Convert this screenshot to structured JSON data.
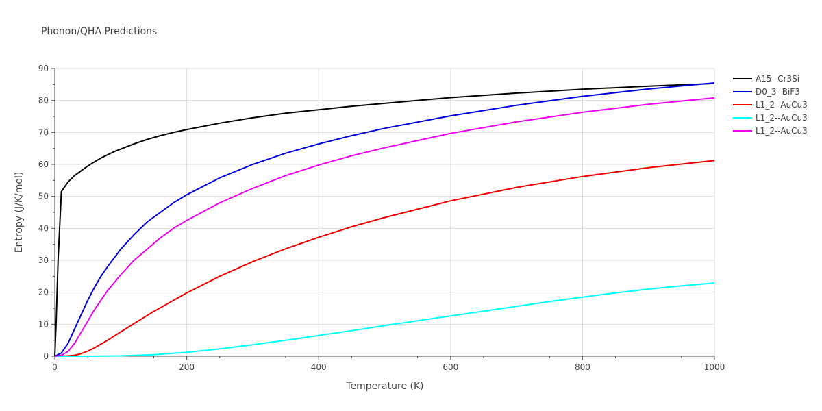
{
  "chart_data": {
    "type": "line",
    "title": "Phonon/QHA Predictions",
    "xlabel": "Temperature (K)",
    "ylabel": "Entropy (J/K/mol)",
    "xlim": [
      0,
      1000
    ],
    "ylim": [
      0,
      90
    ],
    "x_ticks": [
      0,
      200,
      400,
      600,
      800,
      1000
    ],
    "y_ticks": [
      0,
      10,
      20,
      30,
      40,
      50,
      60,
      70,
      80,
      90
    ],
    "grid": true,
    "legend_position": "top-right",
    "series": [
      {
        "name": "A15--Cr3Si",
        "color": "#000000",
        "x": [
          0,
          2,
          5,
          10,
          20,
          30,
          40,
          50,
          60,
          70,
          80,
          90,
          100,
          120,
          140,
          160,
          180,
          200,
          250,
          300,
          350,
          400,
          450,
          500,
          600,
          700,
          800,
          900,
          1000
        ],
        "y": [
          0,
          10,
          30,
          51.5,
          54.5,
          56.5,
          58,
          59.5,
          60.8,
          62,
          63,
          64,
          64.8,
          66.4,
          67.8,
          69,
          70,
          70.9,
          72.9,
          74.6,
          76,
          77.1,
          78.2,
          79.1,
          80.9,
          82.3,
          83.5,
          84.5,
          85.3
        ]
      },
      {
        "name": "D0_3--BiF3",
        "color": "#0000dd",
        "x": [
          0,
          10,
          20,
          30,
          40,
          50,
          60,
          70,
          80,
          100,
          120,
          140,
          160,
          180,
          200,
          250,
          300,
          350,
          400,
          450,
          500,
          600,
          700,
          800,
          900,
          1000
        ],
        "y": [
          0,
          1,
          4,
          8.5,
          13,
          17.5,
          21.5,
          25,
          28,
          33.5,
          38,
          42,
          45,
          48,
          50.5,
          55.8,
          60,
          63.5,
          66.4,
          69,
          71.3,
          75.2,
          78.5,
          81.3,
          83.6,
          85.5
        ]
      },
      {
        "name": "L1_2--AuCu3",
        "color": "#ee0000",
        "x": [
          0,
          20,
          30,
          40,
          50,
          60,
          80,
          100,
          120,
          150,
          200,
          250,
          300,
          350,
          400,
          450,
          500,
          600,
          700,
          800,
          900,
          1000
        ],
        "y": [
          0,
          0.1,
          0.3,
          0.8,
          1.6,
          2.6,
          5,
          7.6,
          10.2,
          14,
          19.8,
          25,
          29.6,
          33.6,
          37.2,
          40.5,
          43.4,
          48.6,
          52.8,
          56.2,
          59,
          61.2
        ]
      },
      {
        "name": "L1_2--AuCu3",
        "color": "#00ffff",
        "x": [
          0,
          50,
          100,
          150,
          200,
          250,
          300,
          350,
          400,
          450,
          500,
          550,
          600,
          650,
          700,
          750,
          800,
          850,
          900,
          950,
          1000
        ],
        "y": [
          0,
          0,
          0.1,
          0.5,
          1.2,
          2.3,
          3.6,
          5,
          6.5,
          8,
          9.6,
          11.1,
          12.6,
          14.1,
          15.6,
          17.1,
          18.5,
          19.8,
          21,
          22,
          22.9
        ]
      },
      {
        "name": "L1_2--AuCu3",
        "color": "#ee00ee",
        "x": [
          0,
          10,
          20,
          30,
          40,
          50,
          60,
          70,
          80,
          100,
          120,
          140,
          160,
          180,
          200,
          250,
          300,
          350,
          400,
          450,
          500,
          600,
          700,
          800,
          900,
          1000
        ],
        "y": [
          0,
          0.3,
          1.5,
          4,
          7.5,
          11,
          14.5,
          17.5,
          20.5,
          25.5,
          30,
          33.5,
          37,
          40,
          42.5,
          48,
          52.5,
          56.5,
          59.8,
          62.7,
          65.2,
          69.7,
          73.3,
          76.3,
          78.8,
          80.8
        ]
      }
    ]
  }
}
